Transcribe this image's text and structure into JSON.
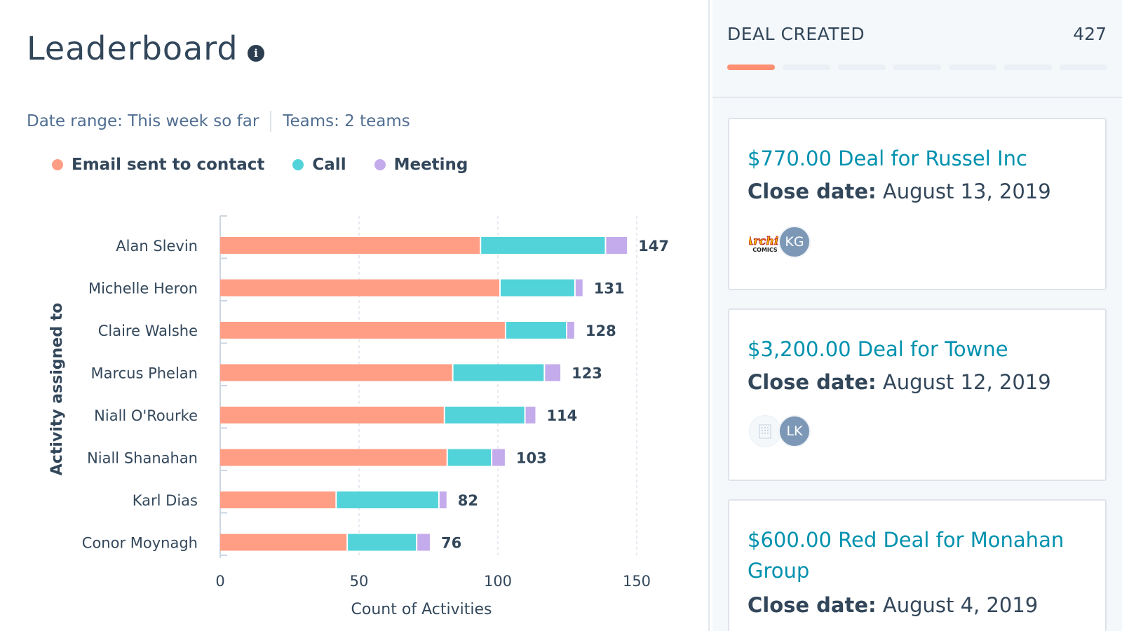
{
  "leaderboard": {
    "title": "Leaderboard",
    "info_glyph": "i",
    "filters": {
      "date_range_label": "Date range:",
      "date_range_value": "This week so far",
      "teams_label": "Teams:",
      "teams_value": "2 teams"
    },
    "colors": {
      "email": "#ff9e85",
      "call": "#51d3d9",
      "meeting": "#c4abeb"
    }
  },
  "chart_data": {
    "type": "bar",
    "orientation": "horizontal",
    "stacked": true,
    "categories": [
      "Alan Slevin",
      "Michelle Heron",
      "Claire Walshe",
      "Marcus Phelan",
      "Niall O'Rourke",
      "Niall Shanahan",
      "Karl Dias",
      "Conor Moynagh"
    ],
    "series": [
      {
        "name": "Email sent to contact",
        "color": "#ff9e85",
        "values": [
          94,
          101,
          103,
          84,
          81,
          82,
          42,
          46
        ]
      },
      {
        "name": "Call",
        "color": "#51d3d9",
        "values": [
          45,
          27,
          22,
          33,
          29,
          16,
          37,
          25
        ]
      },
      {
        "name": "Meeting",
        "color": "#c4abeb",
        "values": [
          8,
          3,
          3,
          6,
          4,
          5,
          3,
          5
        ]
      }
    ],
    "totals": [
      147,
      131,
      128,
      123,
      114,
      103,
      82,
      76
    ],
    "xlabel": "Count of Activities",
    "ylabel": "Activity assigned to",
    "xlim": [
      0,
      150
    ],
    "xticks": [
      0,
      50,
      100,
      150
    ],
    "grid": true,
    "legend_position": "top-left"
  },
  "deals": {
    "title": "DEAL CREATED",
    "count": "427",
    "progress": {
      "segments": 7,
      "active": 1
    },
    "close_label": "Close date:",
    "cards": [
      {
        "name": "$770.00 Deal for Russel Inc",
        "close_date": "August 13, 2019",
        "logo": "archie-comics",
        "logo_text": "Archie COMICS",
        "initials": "KG"
      },
      {
        "name": "$3,200.00 Deal for Towne",
        "close_date": "August 12, 2019",
        "logo": "building",
        "initials": "LK"
      },
      {
        "name": "$600.00 Red Deal for Monahan Group",
        "close_date": "August 4, 2019"
      }
    ]
  }
}
